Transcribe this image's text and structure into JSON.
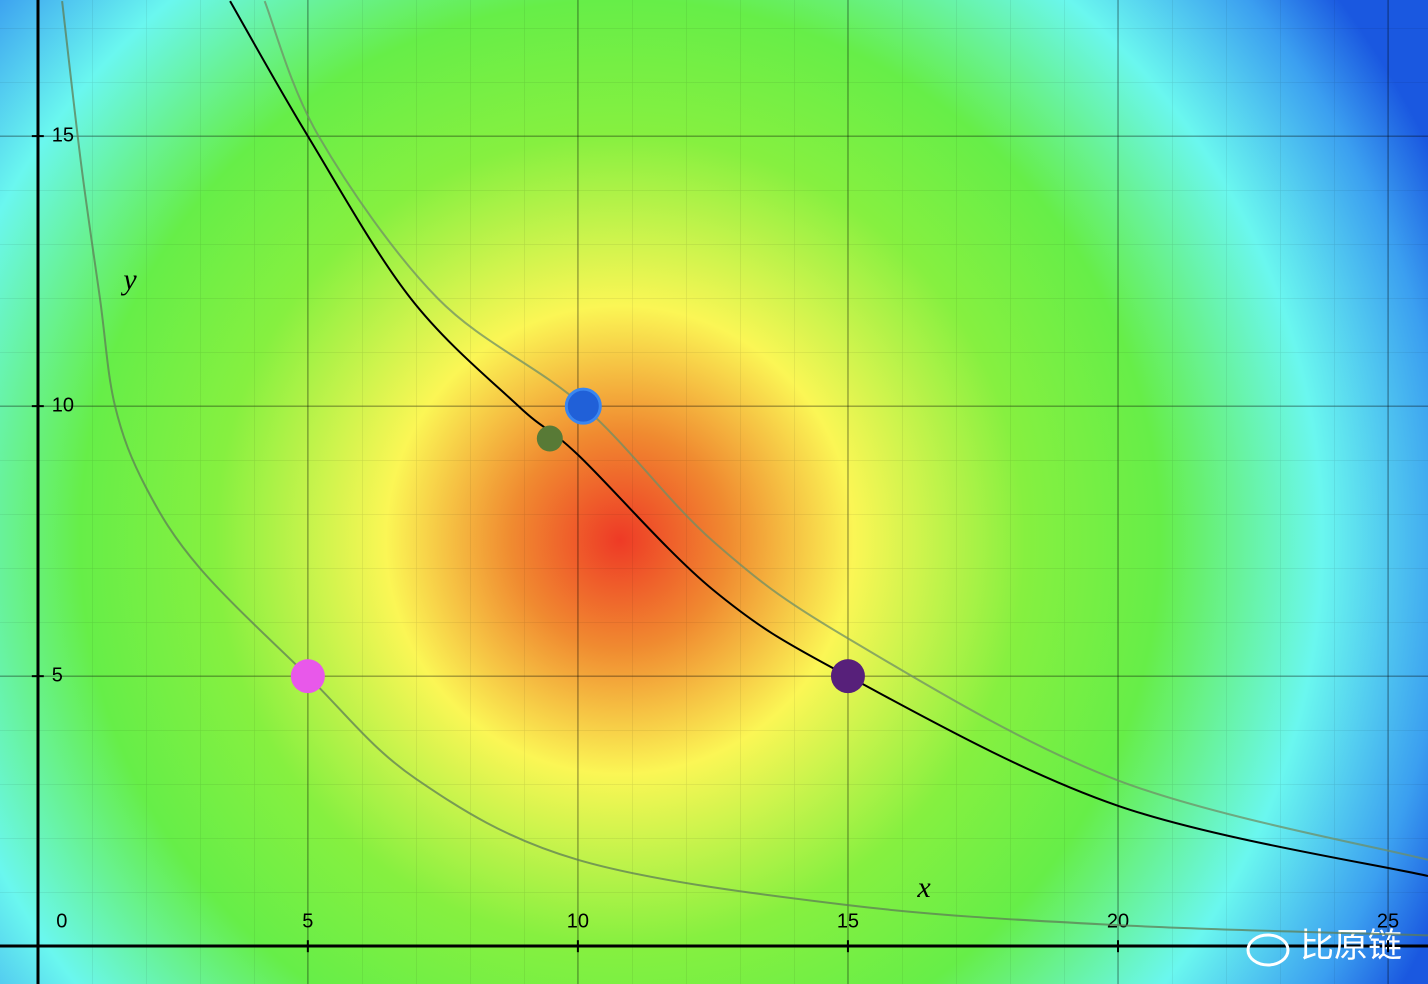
{
  "chart_data": {
    "type": "scatter",
    "x_label": "x",
    "y_label": "y",
    "xlim": [
      -0.7,
      25.74
    ],
    "ylim": [
      -0.7,
      17.52
    ],
    "xticks": [
      0,
      5,
      10,
      15,
      20,
      25
    ],
    "yticks": [
      5,
      10,
      15
    ],
    "grid": true,
    "curves": [
      {
        "color": "#5d7d55",
        "x": [
          0.45,
          0.8,
          1.15,
          1.43,
          2,
          3,
          5,
          7,
          10,
          15,
          20,
          25.74
        ],
        "values": [
          17.5,
          14.5,
          12,
          10,
          8.5,
          7,
          5,
          3.1,
          1.6,
          0.76,
          0.39,
          0.2
        ]
      },
      {
        "color": "#000000",
        "x": [
          3.56,
          5,
          6.9,
          8.9,
          10,
          12.5,
          15,
          20,
          25.74
        ],
        "values": [
          17.5,
          15,
          12,
          10,
          9.1,
          6.6,
          5,
          2.6,
          1.3
        ]
      },
      {
        "color": "#6f8f66",
        "x": [
          4.2,
          5.2,
          7.4,
          10.1,
          12.5,
          15,
          20,
          25.74
        ],
        "values": [
          17.5,
          15,
          12,
          10,
          7.5,
          5.7,
          3.07,
          1.6
        ]
      }
    ],
    "points": [
      {
        "color": "#e858ea",
        "x": 5,
        "y": 5
      },
      {
        "color": "#57207a",
        "x": 15,
        "y": 5
      },
      {
        "color": "#2060d8",
        "x": 10.1,
        "y": 10
      },
      {
        "color": "#587a36",
        "x": 9.48,
        "y": 9.4
      }
    ],
    "watermark": "比原链"
  }
}
